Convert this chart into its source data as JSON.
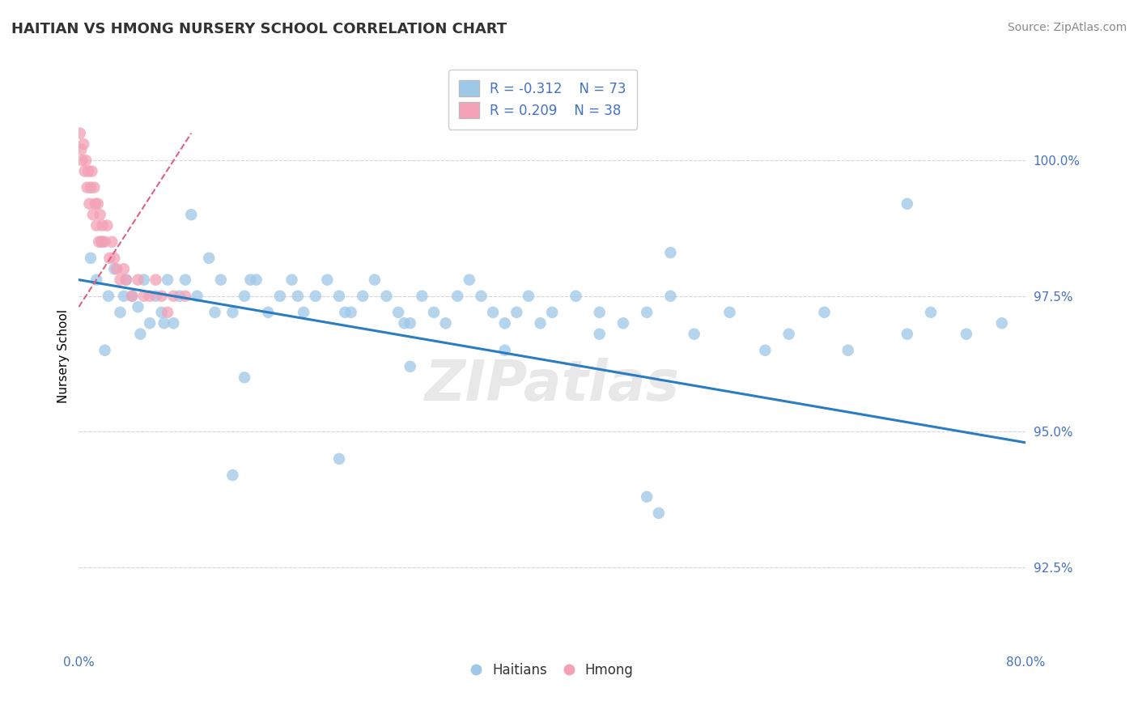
{
  "title": "HAITIAN VS HMONG NURSERY SCHOOL CORRELATION CHART",
  "source_text": "Source: ZipAtlas.com",
  "ylabel": "Nursery School",
  "xlim": [
    0.0,
    80.0
  ],
  "ylim": [
    91.0,
    101.8
  ],
  "yticks": [
    92.5,
    95.0,
    97.5,
    100.0
  ],
  "ytick_labels": [
    "92.5%",
    "95.0%",
    "97.5%",
    "100.0%"
  ],
  "xticks": [
    0,
    10,
    20,
    30,
    40,
    50,
    60,
    70,
    80
  ],
  "xtick_labels": [
    "0.0%",
    "",
    "",
    "",
    "",
    "",
    "",
    "",
    "80.0%"
  ],
  "legend_r1": "R = -0.312",
  "legend_n1": "N = 73",
  "legend_r2": "R = 0.209",
  "legend_n2": "N = 38",
  "legend_label1": "Haitians",
  "legend_label2": "Hmong",
  "blue_color": "#9EC8E8",
  "pink_color": "#F4A0B5",
  "blue_line_color": "#2A7DC0",
  "pink_line_color": "#E06080",
  "blue_scatter_x": [
    1.0,
    1.5,
    2.0,
    2.5,
    3.0,
    3.5,
    4.0,
    4.5,
    5.0,
    5.5,
    6.0,
    6.5,
    7.0,
    7.5,
    8.0,
    8.5,
    9.0,
    10.0,
    11.0,
    12.0,
    13.0,
    14.0,
    15.0,
    16.0,
    17.0,
    18.0,
    19.0,
    20.0,
    21.0,
    22.0,
    23.0,
    24.0,
    25.0,
    26.0,
    27.0,
    28.0,
    29.0,
    30.0,
    31.0,
    32.0,
    33.0,
    34.0,
    35.0,
    36.0,
    37.0,
    38.0,
    39.0,
    40.0,
    42.0,
    44.0,
    46.0,
    48.0,
    50.0,
    52.0,
    55.0,
    58.0,
    60.0,
    63.0,
    65.0,
    70.0,
    72.0,
    75.0,
    78.0,
    2.2,
    3.8,
    5.2,
    7.2,
    9.5,
    11.5,
    14.5,
    18.5,
    22.5,
    27.5
  ],
  "blue_scatter_y": [
    98.2,
    97.8,
    98.5,
    97.5,
    98.0,
    97.2,
    97.8,
    97.5,
    97.3,
    97.8,
    97.0,
    97.5,
    97.2,
    97.8,
    97.0,
    97.5,
    97.8,
    97.5,
    98.2,
    97.8,
    97.2,
    97.5,
    97.8,
    97.2,
    97.5,
    97.8,
    97.2,
    97.5,
    97.8,
    97.5,
    97.2,
    97.5,
    97.8,
    97.5,
    97.2,
    97.0,
    97.5,
    97.2,
    97.0,
    97.5,
    97.8,
    97.5,
    97.2,
    97.0,
    97.2,
    97.5,
    97.0,
    97.2,
    97.5,
    97.2,
    97.0,
    97.2,
    97.5,
    96.8,
    97.2,
    96.5,
    96.8,
    97.2,
    96.5,
    96.8,
    97.2,
    96.8,
    97.0,
    96.5,
    97.5,
    96.8,
    97.0,
    99.0,
    97.2,
    97.8,
    97.5,
    97.2,
    97.0
  ],
  "blue_scatter_y_outliers_x": [
    13.0,
    22.0,
    50.0,
    70.0,
    14.0,
    28.0,
    36.0,
    44.0,
    48.0,
    49.0
  ],
  "blue_scatter_y_outliers_y": [
    94.2,
    94.5,
    98.3,
    99.2,
    96.0,
    96.2,
    96.5,
    96.8,
    93.8,
    93.5
  ],
  "pink_scatter_x": [
    0.1,
    0.2,
    0.3,
    0.4,
    0.5,
    0.6,
    0.7,
    0.8,
    0.9,
    1.0,
    1.1,
    1.2,
    1.3,
    1.4,
    1.5,
    1.6,
    1.7,
    1.8,
    1.9,
    2.0,
    2.2,
    2.4,
    2.6,
    2.8,
    3.0,
    3.2,
    3.5,
    3.8,
    4.0,
    4.5,
    5.0,
    5.5,
    6.0,
    6.5,
    7.0,
    7.5,
    8.0,
    9.0
  ],
  "pink_scatter_y": [
    100.5,
    100.2,
    100.0,
    100.3,
    99.8,
    100.0,
    99.5,
    99.8,
    99.2,
    99.5,
    99.8,
    99.0,
    99.5,
    99.2,
    98.8,
    99.2,
    98.5,
    99.0,
    98.5,
    98.8,
    98.5,
    98.8,
    98.2,
    98.5,
    98.2,
    98.0,
    97.8,
    98.0,
    97.8,
    97.5,
    97.8,
    97.5,
    97.5,
    97.8,
    97.5,
    97.2,
    97.5,
    97.5
  ],
  "blue_trendline_x": [
    0.0,
    80.0
  ],
  "blue_trendline_y": [
    97.8,
    94.8
  ],
  "pink_trendline_x": [
    0.0,
    9.5
  ],
  "pink_trendline_y": [
    97.3,
    100.5
  ],
  "background_color": "#FFFFFF",
  "grid_color": "#CCCCCC"
}
